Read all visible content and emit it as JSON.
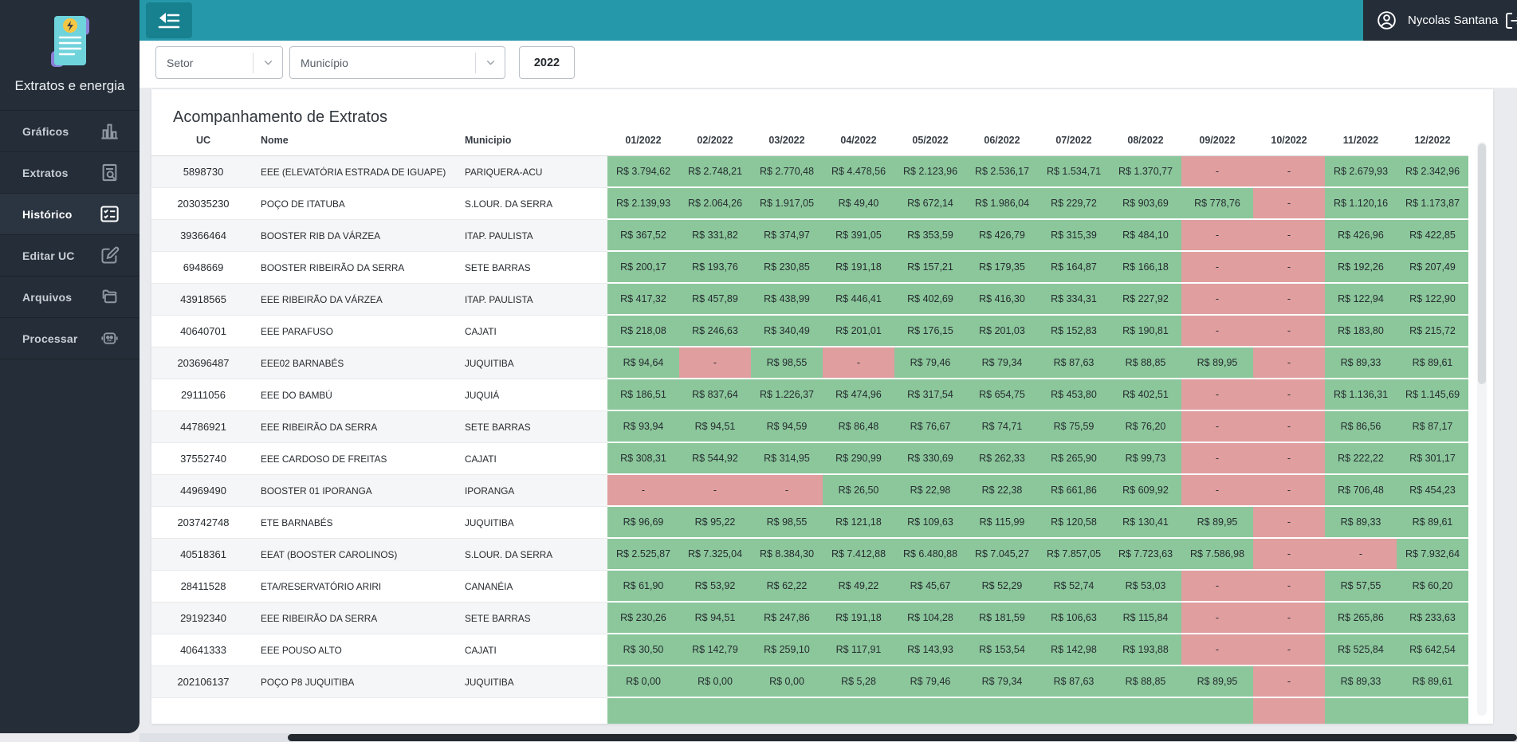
{
  "app": {
    "title": "Extratos e energia"
  },
  "navbar": {
    "user_name": "Nycolas Santana"
  },
  "filters": {
    "setor_label": "Setor",
    "municipio_label": "Município",
    "year_value": "2022"
  },
  "sidebar": {
    "items": [
      {
        "label": "Gráficos",
        "icon": "bar-chart",
        "active": false
      },
      {
        "label": "Extratos",
        "icon": "document-search",
        "active": false
      },
      {
        "label": "Histórico",
        "icon": "checklist",
        "active": true
      },
      {
        "label": "Editar UC",
        "icon": "edit",
        "active": false
      },
      {
        "label": "Arquivos",
        "icon": "folders",
        "active": false
      },
      {
        "label": "Processar",
        "icon": "robot",
        "active": false
      }
    ]
  },
  "card": {
    "title": "Acompanhamento de Extratos"
  },
  "table": {
    "columns": {
      "uc": "UC",
      "nome": "Nome",
      "municipio": "Municipio",
      "months": [
        "01/2022",
        "02/2022",
        "03/2022",
        "04/2022",
        "05/2022",
        "06/2022",
        "07/2022",
        "08/2022",
        "09/2022",
        "10/2022",
        "11/2022",
        "12/2022"
      ]
    },
    "rows": [
      {
        "uc": "5898730",
        "nome": "EEE (ELEVATÓRIA ESTRADA DE IGUAPE)",
        "municipio": "PARIQUERA-ACU",
        "values": [
          "R$ 3.794,62",
          "R$ 2.748,21",
          "R$ 2.770,48",
          "R$ 4.478,56",
          "R$ 2.123,96",
          "R$ 2.536,17",
          "R$ 1.534,71",
          "R$ 1.370,77",
          "-",
          "-",
          "R$ 2.679,93",
          "R$ 2.342,96"
        ],
        "status": [
          "g",
          "g",
          "g",
          "g",
          "g",
          "g",
          "g",
          "g",
          "r",
          "r",
          "g",
          "g"
        ]
      },
      {
        "uc": "203035230",
        "nome": "POÇO DE ITATUBA",
        "municipio": "S.LOUR. DA SERRA",
        "values": [
          "R$ 2.139,93",
          "R$ 2.064,26",
          "R$ 1.917,05",
          "R$ 49,40",
          "R$ 672,14",
          "R$ 1.986,04",
          "R$ 229,72",
          "R$ 903,69",
          "R$ 778,76",
          "-",
          "R$ 1.120,16",
          "R$ 1.173,87"
        ],
        "status": [
          "g",
          "g",
          "g",
          "g",
          "g",
          "g",
          "g",
          "g",
          "g",
          "r",
          "g",
          "g"
        ]
      },
      {
        "uc": "39366464",
        "nome": "BOOSTER RIB DA VÁRZEA",
        "municipio": "ITAP. PAULISTA",
        "values": [
          "R$ 367,52",
          "R$ 331,82",
          "R$ 374,97",
          "R$ 391,05",
          "R$ 353,59",
          "R$ 426,79",
          "R$ 315,39",
          "R$ 484,10",
          "-",
          "-",
          "R$ 426,96",
          "R$ 422,85"
        ],
        "status": [
          "g",
          "g",
          "g",
          "g",
          "g",
          "g",
          "g",
          "g",
          "r",
          "r",
          "g",
          "g"
        ]
      },
      {
        "uc": "6948669",
        "nome": "BOOSTER RIBEIRÃO DA SERRA",
        "municipio": "SETE BARRAS",
        "values": [
          "R$ 200,17",
          "R$ 193,76",
          "R$ 230,85",
          "R$ 191,18",
          "R$ 157,21",
          "R$ 179,35",
          "R$ 164,87",
          "R$ 166,18",
          "-",
          "-",
          "R$ 192,26",
          "R$ 207,49"
        ],
        "status": [
          "g",
          "g",
          "g",
          "g",
          "g",
          "g",
          "g",
          "g",
          "r",
          "r",
          "g",
          "g"
        ]
      },
      {
        "uc": "43918565",
        "nome": "EEE RIBEIRÃO DA VÁRZEA",
        "municipio": "ITAP. PAULISTA",
        "values": [
          "R$ 417,32",
          "R$ 457,89",
          "R$ 438,99",
          "R$ 446,41",
          "R$ 402,69",
          "R$ 416,30",
          "R$ 334,31",
          "R$ 227,92",
          "-",
          "-",
          "R$ 122,94",
          "R$ 122,90"
        ],
        "status": [
          "g",
          "g",
          "g",
          "g",
          "g",
          "g",
          "g",
          "g",
          "r",
          "r",
          "g",
          "g"
        ]
      },
      {
        "uc": "40640701",
        "nome": "EEE PARAFUSO",
        "municipio": "CAJATI",
        "values": [
          "R$ 218,08",
          "R$ 246,63",
          "R$ 340,49",
          "R$ 201,01",
          "R$ 176,15",
          "R$ 201,03",
          "R$ 152,83",
          "R$ 190,81",
          "-",
          "-",
          "R$ 183,80",
          "R$ 215,72"
        ],
        "status": [
          "g",
          "g",
          "g",
          "g",
          "g",
          "g",
          "g",
          "g",
          "r",
          "r",
          "g",
          "g"
        ]
      },
      {
        "uc": "203696487",
        "nome": "EEE02 BARNABÉS",
        "municipio": "JUQUITIBA",
        "values": [
          "R$ 94,64",
          "-",
          "R$ 98,55",
          "-",
          "R$ 79,46",
          "R$ 79,34",
          "R$ 87,63",
          "R$ 88,85",
          "R$ 89,95",
          "-",
          "R$ 89,33",
          "R$ 89,61"
        ],
        "status": [
          "g",
          "r",
          "g",
          "r",
          "g",
          "g",
          "g",
          "g",
          "g",
          "r",
          "g",
          "g"
        ]
      },
      {
        "uc": "29111056",
        "nome": "EEE DO BAMBÚ",
        "municipio": "JUQUIÁ",
        "values": [
          "R$ 186,51",
          "R$ 837,64",
          "R$ 1.226,37",
          "R$ 474,96",
          "R$ 317,54",
          "R$ 654,75",
          "R$ 453,80",
          "R$ 402,51",
          "-",
          "-",
          "R$ 1.136,31",
          "R$ 1.145,69"
        ],
        "status": [
          "g",
          "g",
          "g",
          "g",
          "g",
          "g",
          "g",
          "g",
          "r",
          "r",
          "g",
          "g"
        ]
      },
      {
        "uc": "44786921",
        "nome": "EEE RIBEIRÃO DA SERRA",
        "municipio": "SETE BARRAS",
        "values": [
          "R$ 93,94",
          "R$ 94,51",
          "R$ 94,59",
          "R$ 86,48",
          "R$ 76,67",
          "R$ 74,71",
          "R$ 75,59",
          "R$ 76,20",
          "-",
          "-",
          "R$ 86,56",
          "R$ 87,17"
        ],
        "status": [
          "g",
          "g",
          "g",
          "g",
          "g",
          "g",
          "g",
          "g",
          "r",
          "r",
          "g",
          "g"
        ]
      },
      {
        "uc": "37552740",
        "nome": "EEE CARDOSO DE FREITAS",
        "municipio": "CAJATI",
        "values": [
          "R$ 308,31",
          "R$ 544,92",
          "R$ 314,95",
          "R$ 290,99",
          "R$ 330,69",
          "R$ 262,33",
          "R$ 265,90",
          "R$ 99,73",
          "-",
          "-",
          "R$ 222,22",
          "R$ 301,17"
        ],
        "status": [
          "g",
          "g",
          "g",
          "g",
          "g",
          "g",
          "g",
          "g",
          "r",
          "r",
          "g",
          "g"
        ]
      },
      {
        "uc": "44969490",
        "nome": "BOOSTER 01 IPORANGA",
        "municipio": "IPORANGA",
        "values": [
          "-",
          "-",
          "-",
          "R$ 26,50",
          "R$ 22,98",
          "R$ 22,38",
          "R$ 661,86",
          "R$ 609,92",
          "-",
          "-",
          "R$ 706,48",
          "R$ 454,23"
        ],
        "status": [
          "r",
          "r",
          "r",
          "g",
          "g",
          "g",
          "g",
          "g",
          "r",
          "r",
          "g",
          "g"
        ]
      },
      {
        "uc": "203742748",
        "nome": "ETE BARNABÉS",
        "municipio": "JUQUITIBA",
        "values": [
          "R$ 96,69",
          "R$ 95,22",
          "R$ 98,55",
          "R$ 121,18",
          "R$ 109,63",
          "R$ 115,99",
          "R$ 120,58",
          "R$ 130,41",
          "R$ 89,95",
          "-",
          "R$ 89,33",
          "R$ 89,61"
        ],
        "status": [
          "g",
          "g",
          "g",
          "g",
          "g",
          "g",
          "g",
          "g",
          "g",
          "r",
          "g",
          "g"
        ]
      },
      {
        "uc": "40518361",
        "nome": "EEAT (BOOSTER CAROLINOS)",
        "municipio": "S.LOUR. DA SERRA",
        "values": [
          "R$ 2.525,87",
          "R$ 7.325,04",
          "R$ 8.384,30",
          "R$ 7.412,88",
          "R$ 6.480,88",
          "R$ 7.045,27",
          "R$ 7.857,05",
          "R$ 7.723,63",
          "R$ 7.586,98",
          "-",
          "-",
          "R$ 7.932,64"
        ],
        "status": [
          "g",
          "g",
          "g",
          "g",
          "g",
          "g",
          "g",
          "g",
          "g",
          "r",
          "r",
          "g"
        ]
      },
      {
        "uc": "28411528",
        "nome": "ETA/RESERVATÓRIO ARIRI",
        "municipio": "CANANÉIA",
        "values": [
          "R$ 61,90",
          "R$ 53,92",
          "R$ 62,22",
          "R$ 49,22",
          "R$ 45,67",
          "R$ 52,29",
          "R$ 52,74",
          "R$ 53,03",
          "-",
          "-",
          "R$ 57,55",
          "R$ 60,20"
        ],
        "status": [
          "g",
          "g",
          "g",
          "g",
          "g",
          "g",
          "g",
          "g",
          "r",
          "r",
          "g",
          "g"
        ]
      },
      {
        "uc": "29192340",
        "nome": "EEE RIBEIRÃO DA SERRA",
        "municipio": "SETE BARRAS",
        "values": [
          "R$ 230,26",
          "R$ 94,51",
          "R$ 247,86",
          "R$ 191,18",
          "R$ 104,28",
          "R$ 181,59",
          "R$ 106,63",
          "R$ 115,84",
          "-",
          "-",
          "R$ 265,86",
          "R$ 233,63"
        ],
        "status": [
          "g",
          "g",
          "g",
          "g",
          "g",
          "g",
          "g",
          "g",
          "r",
          "r",
          "g",
          "g"
        ]
      },
      {
        "uc": "40641333",
        "nome": "EEE POUSO ALTO",
        "municipio": "CAJATI",
        "values": [
          "R$ 30,50",
          "R$ 142,79",
          "R$ 259,10",
          "R$ 117,91",
          "R$ 143,93",
          "R$ 153,54",
          "R$ 142,98",
          "R$ 193,88",
          "-",
          "-",
          "R$ 525,84",
          "R$ 642,54"
        ],
        "status": [
          "g",
          "g",
          "g",
          "g",
          "g",
          "g",
          "g",
          "g",
          "r",
          "r",
          "g",
          "g"
        ]
      },
      {
        "uc": "202106137",
        "nome": "POÇO P8 JUQUITIBA",
        "municipio": "JUQUITIBA",
        "values": [
          "R$ 0,00",
          "R$ 0,00",
          "R$ 0,00",
          "R$ 5,28",
          "R$ 79,46",
          "R$ 79,34",
          "R$ 87,63",
          "R$ 88,85",
          "R$ 89,95",
          "-",
          "R$ 89,33",
          "R$ 89,61"
        ],
        "status": [
          "g",
          "g",
          "g",
          "g",
          "g",
          "g",
          "g",
          "g",
          "g",
          "r",
          "g",
          "g"
        ]
      }
    ],
    "partial_row_status": [
      "g",
      "g",
      "g",
      "g",
      "g",
      "g",
      "g",
      "g",
      "g",
      "r",
      "g",
      "g"
    ]
  },
  "colors": {
    "accent_teal": "#2598a9",
    "sidebar_dark": "#242d38",
    "positive_green": "#8bc79b",
    "negative_red": "#e09e9f"
  }
}
